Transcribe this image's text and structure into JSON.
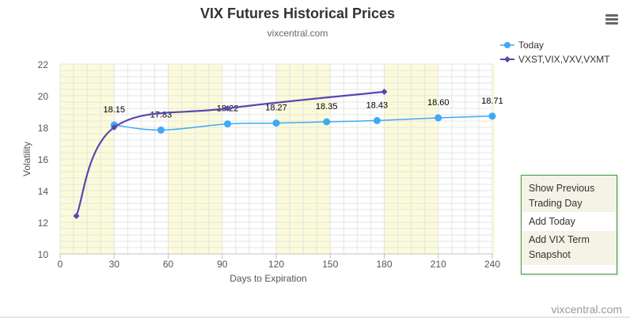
{
  "chart_data": {
    "type": "line",
    "title": "VIX Futures Historical Prices",
    "subtitle": "vixcentral.com",
    "xlabel": "Days to Expiration",
    "ylabel": "Volatility",
    "xlim": [
      0,
      240
    ],
    "ylim": [
      10,
      22
    ],
    "x_ticks": [
      "0",
      "30",
      "60",
      "90",
      "120",
      "150",
      "180",
      "210",
      "240"
    ],
    "y_ticks": [
      "10",
      "12",
      "14",
      "16",
      "18",
      "20",
      "22"
    ],
    "series": [
      {
        "name": "Today",
        "color": "#3fa9f5",
        "marker": "circle",
        "x": [
          30,
          56,
          93,
          120,
          148,
          176,
          210,
          240
        ],
        "y": [
          18.15,
          17.83,
          18.22,
          18.27,
          18.35,
          18.43,
          18.6,
          18.71
        ],
        "labels": [
          "18.15",
          "17.83",
          "18.22",
          "18.27",
          "18.35",
          "18.43",
          "18.60",
          "18.71"
        ]
      },
      {
        "name": "VXST,VIX,VXV,VXMT",
        "color": "#5b45b0",
        "marker": "diamond",
        "x": [
          9,
          30,
          93,
          180
        ],
        "y": [
          12.4,
          18.0,
          19.2,
          20.25
        ]
      }
    ],
    "shaded_bands": [
      [
        0,
        30
      ],
      [
        60,
        90
      ],
      [
        120,
        150
      ],
      [
        180,
        210
      ],
      [
        240,
        242
      ]
    ],
    "band_color": "#fbfbd9",
    "grid": true,
    "legend_position": "top-right"
  },
  "menu": {
    "items": [
      "Show Previous Trading Day",
      "Add Today",
      "Add VIX Term Snapshot"
    ]
  },
  "credit": "vixcentral.com",
  "icons": {
    "menu": "hamburger-menu-icon"
  }
}
